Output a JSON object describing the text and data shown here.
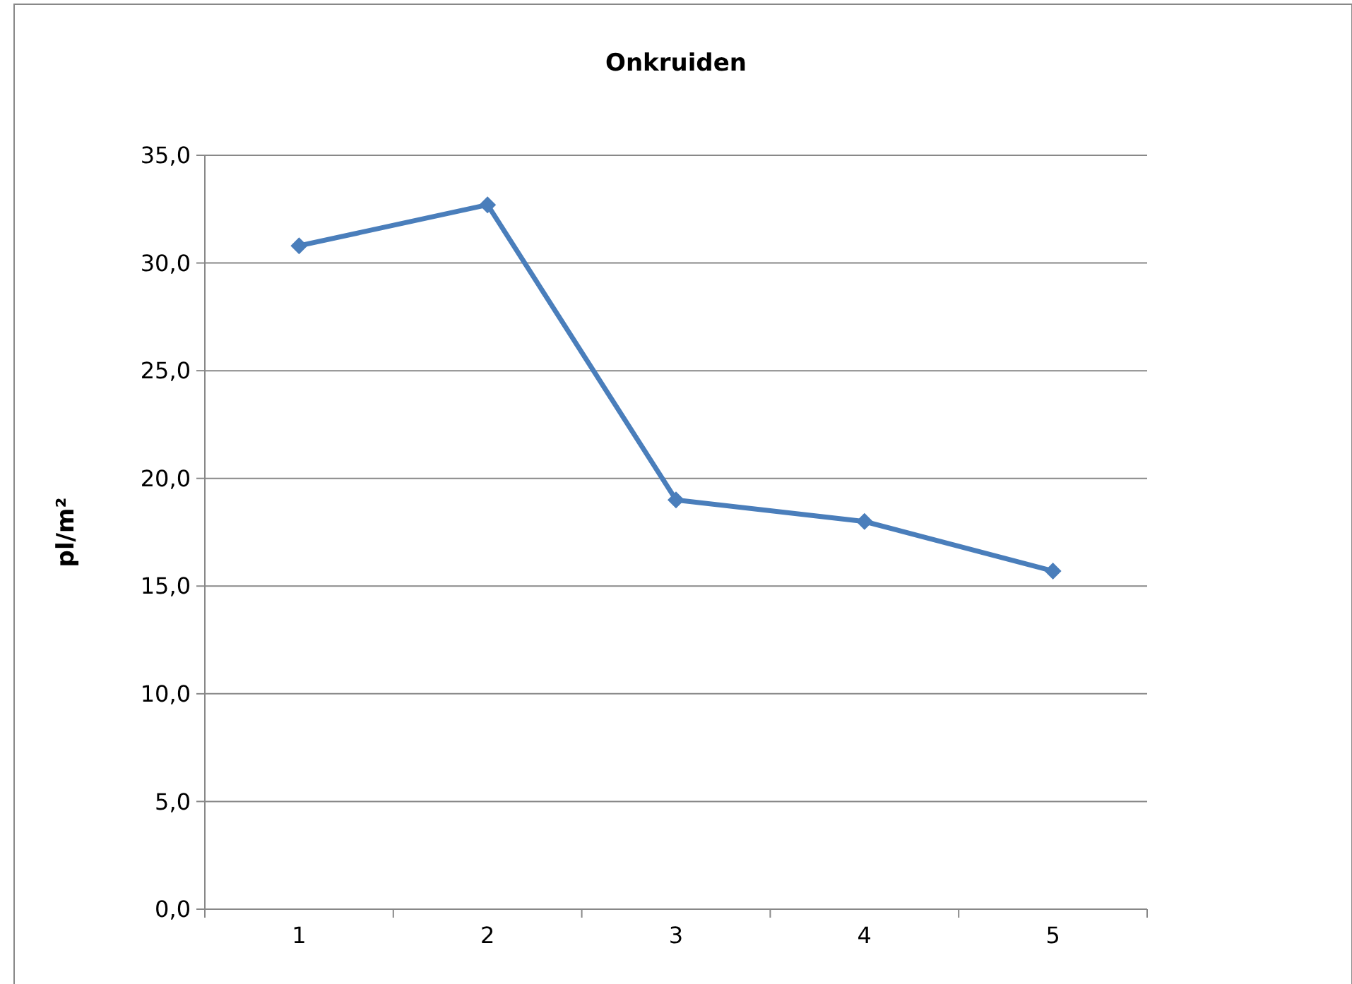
{
  "chart_data": {
    "type": "line",
    "title": "Onkruiden",
    "ylabel": "pl/m²",
    "categories": [
      "1",
      "2",
      "3",
      "4",
      "5"
    ],
    "series": [
      {
        "color": "#4a7ebb",
        "values": [
          30.8,
          32.7,
          19.0,
          18.0,
          15.7
        ]
      }
    ],
    "ylim": [
      0,
      35
    ],
    "yticks": [
      {
        "value": 0,
        "label": "0,0"
      },
      {
        "value": 5,
        "label": "5,0"
      },
      {
        "value": 10,
        "label": "10,0"
      },
      {
        "value": 15,
        "label": "15,0"
      },
      {
        "value": 20,
        "label": "20,0"
      },
      {
        "value": 25,
        "label": "25,0"
      },
      {
        "value": 30,
        "label": "30,0"
      },
      {
        "value": 35,
        "label": "35,0"
      }
    ],
    "grid": "y",
    "marker": "diamond",
    "line_style": "solid"
  }
}
